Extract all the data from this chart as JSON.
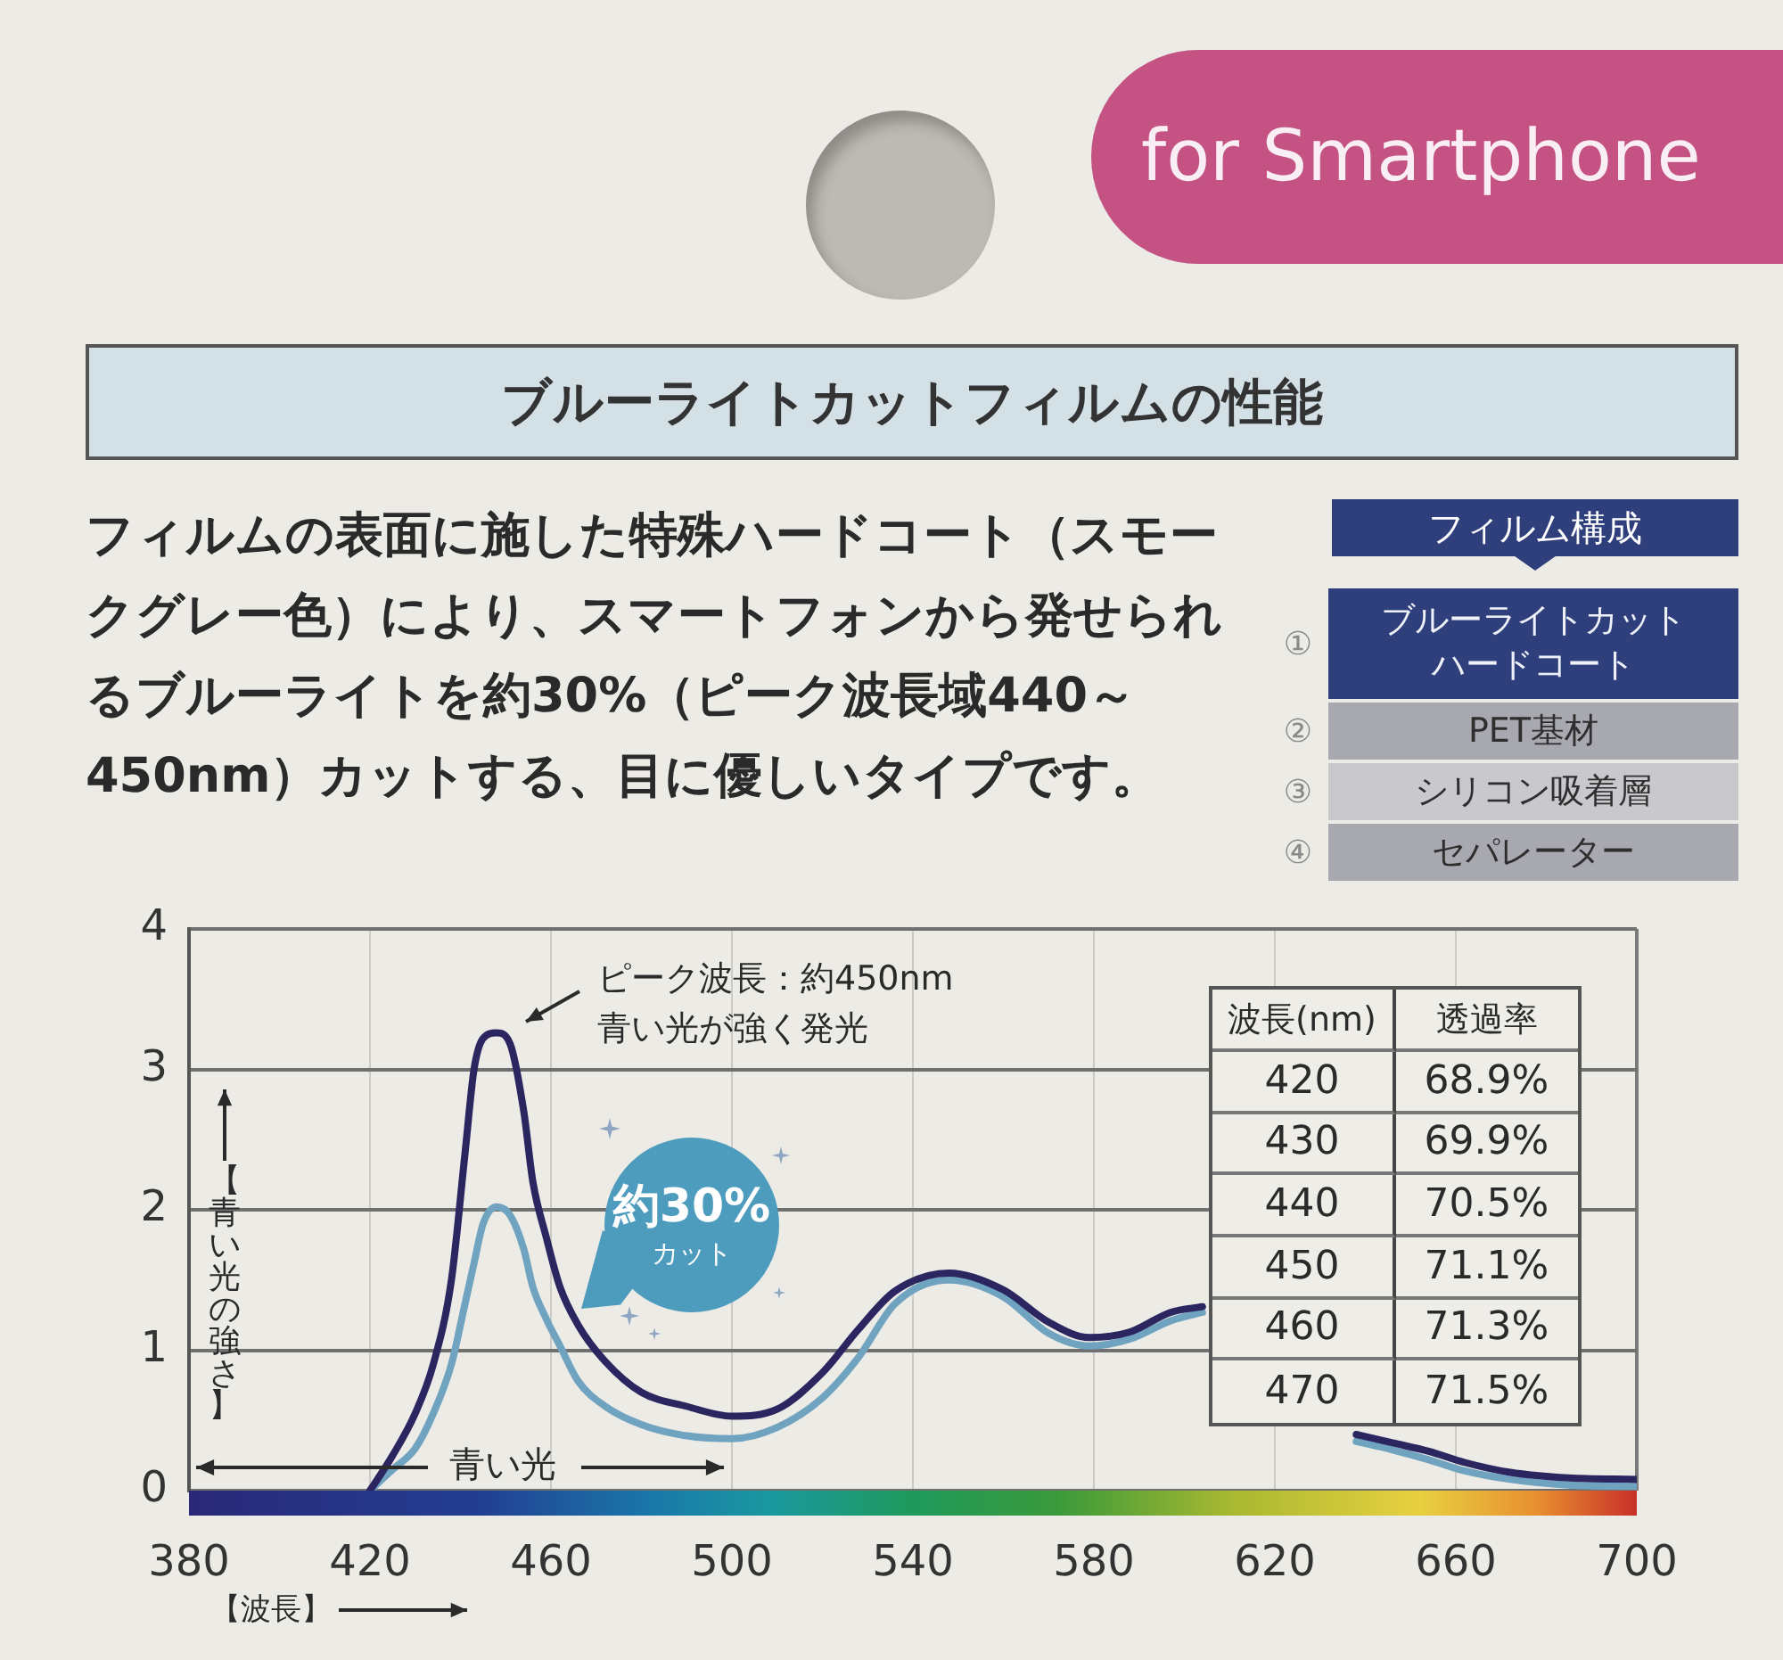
{
  "chart_data": {
    "type": "line",
    "title": "ブルーライトカットフィルムの性能",
    "subtitle": "フィルムの表面に施した特殊ハードコート（スモークグレー色）により、スマートフォンから発せられるブルーライトを約30%（ピーク波長域440～450nm）カットする、目に優しいタイプです。",
    "xlabel": "【波長】",
    "ylabel": "【青い光の強さ】",
    "x": [
      420,
      425,
      430,
      434,
      438,
      441,
      443,
      445,
      448,
      451,
      454,
      456,
      459,
      462,
      466,
      472,
      480,
      490,
      500,
      510,
      520,
      528,
      536,
      548,
      560,
      570,
      579,
      588,
      597,
      604,
      620,
      638,
      646,
      654,
      662,
      672,
      685,
      700
    ],
    "series": [
      {
        "color": "#2b2560",
        "values": [
          0,
          0.25,
          0.55,
          0.9,
          1.5,
          2.4,
          3.0,
          3.22,
          3.26,
          3.18,
          2.7,
          2.2,
          1.8,
          1.45,
          1.18,
          0.92,
          0.7,
          0.6,
          0.53,
          0.58,
          0.84,
          1.15,
          1.42,
          1.55,
          1.43,
          1.2,
          1.09,
          1.13,
          1.27,
          1.31,
          null,
          0.4,
          0.34,
          0.28,
          0.2,
          0.13,
          0.09,
          0.08
        ]
      },
      {
        "color": "#6fa3c0",
        "values": [
          0,
          0.15,
          0.3,
          0.55,
          0.9,
          1.33,
          1.62,
          1.9,
          2.02,
          1.96,
          1.72,
          1.45,
          1.22,
          1.03,
          0.78,
          0.6,
          0.47,
          0.39,
          0.37,
          0.45,
          0.66,
          0.95,
          1.33,
          1.5,
          1.38,
          1.12,
          1.03,
          1.08,
          1.21,
          1.27,
          null,
          0.35,
          0.29,
          0.22,
          0.14,
          0.08,
          0.04,
          0.03
        ]
      }
    ],
    "xlim": [
      380,
      700
    ],
    "xticks": [
      380,
      420,
      460,
      500,
      540,
      580,
      620,
      660,
      700
    ],
    "ylim": [
      0,
      4
    ],
    "yticks": [
      0,
      1,
      2,
      3,
      4
    ],
    "grid": true,
    "annotations": [
      "for Smartphone",
      "フィルム構成",
      "①",
      "ブルーライトカットハードコート",
      "②",
      "PET基材",
      "③",
      "シリコン吸着層",
      "④",
      "セパレーター",
      "ピーク波長：約450nm",
      "青い光が強く発光",
      "約30%",
      "カット",
      "青い光",
      "波長(nm)",
      "透過率",
      "420",
      "68.9%",
      "430",
      "69.9%",
      "440",
      "70.5%",
      "450",
      "71.1%",
      "460",
      "71.3%",
      "470",
      "71.5%"
    ]
  }
}
